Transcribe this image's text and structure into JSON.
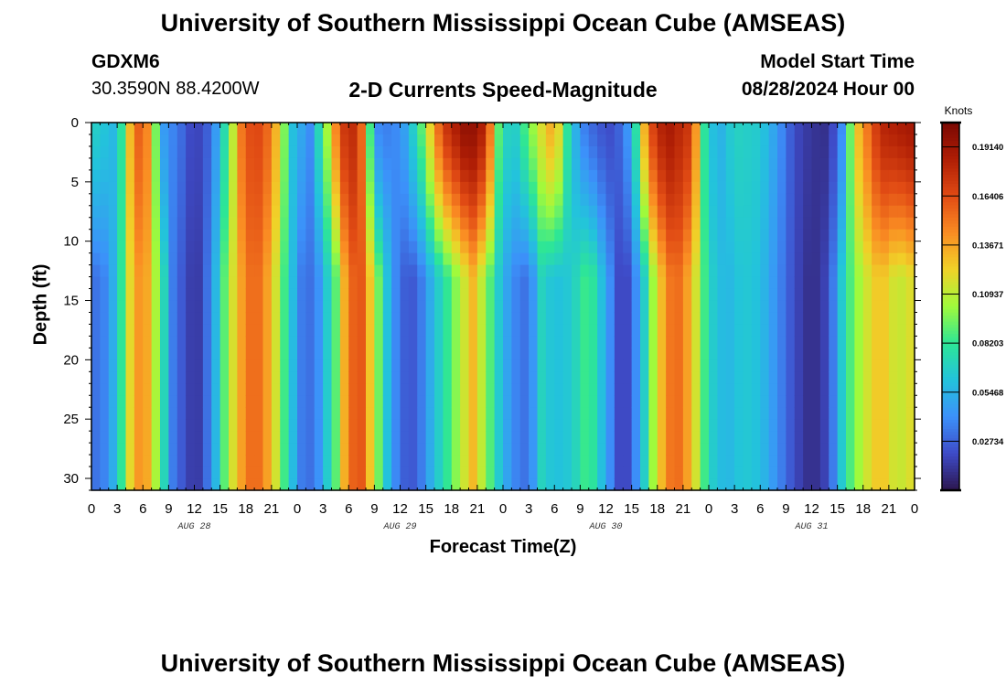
{
  "header": {
    "title": "University of Southern Mississippi Ocean Cube (AMSEAS)",
    "station_id": "GDXM6",
    "location": "30.3590N  88.4200W",
    "subtitle": "2-D Currents Speed-Magnitude",
    "model_start_label": "Model Start Time",
    "model_start_value": "08/28/2024 Hour 00"
  },
  "footer": {
    "title": "University of Southern Mississippi Ocean Cube (AMSEAS)"
  },
  "chart_data": {
    "type": "heatmap",
    "title": "2-D Currents Speed-Magnitude",
    "xlabel": "Forecast Time(Z)",
    "ylabel": "Depth (ft)",
    "x_hours": [
      0,
      96
    ],
    "x_ticks": [
      {
        "h": 0,
        "label": "0"
      },
      {
        "h": 3,
        "label": "3"
      },
      {
        "h": 6,
        "label": "6"
      },
      {
        "h": 9,
        "label": "9"
      },
      {
        "h": 12,
        "label": "12"
      },
      {
        "h": 15,
        "label": "15"
      },
      {
        "h": 18,
        "label": "18"
      },
      {
        "h": 21,
        "label": "21"
      },
      {
        "h": 24,
        "label": "0"
      },
      {
        "h": 27,
        "label": "3"
      },
      {
        "h": 30,
        "label": "6"
      },
      {
        "h": 33,
        "label": "9"
      },
      {
        "h": 36,
        "label": "12"
      },
      {
        "h": 39,
        "label": "15"
      },
      {
        "h": 42,
        "label": "18"
      },
      {
        "h": 45,
        "label": "21"
      },
      {
        "h": 48,
        "label": "0"
      },
      {
        "h": 51,
        "label": "3"
      },
      {
        "h": 54,
        "label": "6"
      },
      {
        "h": 57,
        "label": "9"
      },
      {
        "h": 60,
        "label": "12"
      },
      {
        "h": 63,
        "label": "15"
      },
      {
        "h": 66,
        "label": "18"
      },
      {
        "h": 69,
        "label": "21"
      },
      {
        "h": 72,
        "label": "0"
      },
      {
        "h": 75,
        "label": "3"
      },
      {
        "h": 78,
        "label": "6"
      },
      {
        "h": 81,
        "label": "9"
      },
      {
        "h": 84,
        "label": "12"
      },
      {
        "h": 87,
        "label": "15"
      },
      {
        "h": 90,
        "label": "18"
      },
      {
        "h": 93,
        "label": "21"
      },
      {
        "h": 96,
        "label": "0"
      }
    ],
    "day_labels": [
      {
        "h": 12,
        "label": "AUG 28"
      },
      {
        "h": 36,
        "label": "AUG 29"
      },
      {
        "h": 60,
        "label": "AUG 30"
      },
      {
        "h": 84,
        "label": "AUG 31"
      }
    ],
    "y_range": [
      0,
      31
    ],
    "y_ticks": [
      0,
      5,
      10,
      15,
      20,
      25,
      30
    ],
    "colorbar": {
      "units": "Knots",
      "range": [
        0,
        0.205
      ],
      "ticks": [
        "0.19140",
        "0.16406",
        "0.13671",
        "0.10937",
        "0.08203",
        "0.05468",
        "0.02734"
      ],
      "tick_values": [
        0.1914,
        0.16406,
        0.13671,
        0.10937,
        0.08203,
        0.05468,
        0.02734
      ]
    },
    "surface_speed_by_hour": [
      [
        0,
        0.07
      ],
      [
        1,
        0.065
      ],
      [
        3,
        0.055
      ],
      [
        4.5,
        0.13
      ],
      [
        6,
        0.17
      ],
      [
        7.2,
        0.11
      ],
      [
        8.5,
        0.045
      ],
      [
        10.5,
        0.03
      ],
      [
        12,
        0.015
      ],
      [
        14,
        0.03
      ],
      [
        16,
        0.09
      ],
      [
        17.5,
        0.15
      ],
      [
        19,
        0.17
      ],
      [
        21,
        0.15
      ],
      [
        23.5,
        0.06
      ],
      [
        25.5,
        0.04
      ],
      [
        28,
        0.12
      ],
      [
        29,
        0.17
      ],
      [
        31,
        0.18
      ],
      [
        32,
        0.13
      ],
      [
        33,
        0.04
      ],
      [
        35,
        0.035
      ],
      [
        36.8,
        0.05
      ],
      [
        38.5,
        0.09
      ],
      [
        41,
        0.17
      ],
      [
        44,
        0.2
      ],
      [
        46,
        0.18
      ],
      [
        47.5,
        0.09
      ],
      [
        49,
        0.06
      ],
      [
        52,
        0.11
      ],
      [
        54,
        0.14
      ],
      [
        55.5,
        0.08
      ],
      [
        57,
        0.04
      ],
      [
        59,
        0.025
      ],
      [
        61,
        0.02
      ],
      [
        63,
        0.05
      ],
      [
        65,
        0.16
      ],
      [
        67,
        0.19
      ],
      [
        70,
        0.17
      ],
      [
        71.5,
        0.08
      ],
      [
        73,
        0.05
      ],
      [
        75,
        0.07
      ],
      [
        78,
        0.065
      ],
      [
        80,
        0.045
      ],
      [
        82,
        0.02
      ],
      [
        84,
        0.012
      ],
      [
        86,
        0.01
      ],
      [
        87.5,
        0.04
      ],
      [
        89,
        0.12
      ],
      [
        92,
        0.18
      ],
      [
        96,
        0.19
      ]
    ],
    "bottom_speed_by_hour": [
      [
        0,
        0.03
      ],
      [
        2,
        0.04
      ],
      [
        3.2,
        0.07
      ],
      [
        4.5,
        0.12
      ],
      [
        6,
        0.15
      ],
      [
        8,
        0.09
      ],
      [
        9.5,
        0.035
      ],
      [
        11,
        0.02
      ],
      [
        12.2,
        0.01
      ],
      [
        14,
        0.04
      ],
      [
        15.5,
        0.09
      ],
      [
        17,
        0.13
      ],
      [
        19,
        0.16
      ],
      [
        21,
        0.13
      ],
      [
        23,
        0.07
      ],
      [
        24.5,
        0.035
      ],
      [
        26,
        0.03
      ],
      [
        28.5,
        0.09
      ],
      [
        30,
        0.155
      ],
      [
        31.5,
        0.16
      ],
      [
        33,
        0.11
      ],
      [
        35,
        0.045
      ],
      [
        37,
        0.02
      ],
      [
        38.5,
        0.035
      ],
      [
        40,
        0.06
      ],
      [
        42,
        0.09
      ],
      [
        44.5,
        0.13
      ],
      [
        46,
        0.1
      ],
      [
        47.5,
        0.065
      ],
      [
        49,
        0.04
      ],
      [
        51,
        0.03
      ],
      [
        52.5,
        0.07
      ],
      [
        54,
        0.06
      ],
      [
        56,
        0.065
      ],
      [
        58,
        0.09
      ],
      [
        60,
        0.05
      ],
      [
        61.5,
        0.02
      ],
      [
        62.5,
        0.02
      ],
      [
        64,
        0.05
      ],
      [
        66,
        0.12
      ],
      [
        68,
        0.16
      ],
      [
        70,
        0.13
      ],
      [
        72,
        0.07
      ],
      [
        74,
        0.055
      ],
      [
        76,
        0.065
      ],
      [
        78,
        0.06
      ],
      [
        80,
        0.04
      ],
      [
        82,
        0.02
      ],
      [
        84,
        0.008
      ],
      [
        86,
        0.02
      ],
      [
        88,
        0.08
      ],
      [
        90,
        0.11
      ],
      [
        92,
        0.13
      ],
      [
        94,
        0.11
      ],
      [
        96,
        0.12
      ]
    ]
  }
}
